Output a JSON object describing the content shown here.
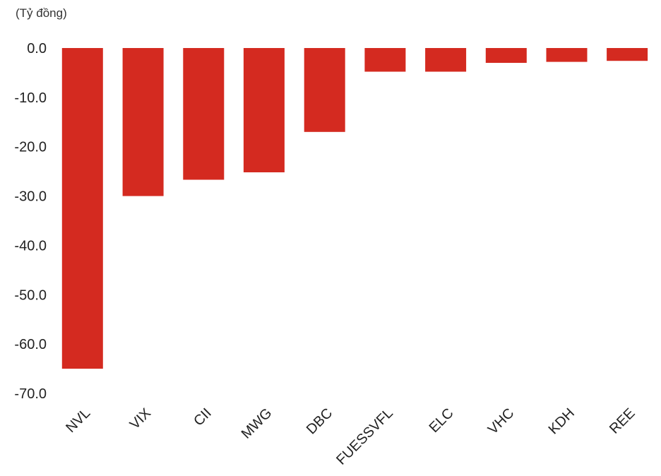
{
  "chart_data": {
    "type": "bar",
    "unit_label": "(Tỷ đồng)",
    "categories": [
      "NVL",
      "VIX",
      "CII",
      "MWG",
      "DBC",
      "FUESSVFL",
      "ELC",
      "VHC",
      "KDH",
      "REE"
    ],
    "values": [
      -65.0,
      -30.0,
      -26.7,
      -25.2,
      -17.0,
      -4.8,
      -4.8,
      -3.0,
      -2.8,
      -2.6
    ],
    "ylim": [
      -70,
      0
    ],
    "yticks": [
      "0.0",
      "-10.0",
      "-20.0",
      "-30.0",
      "-40.0",
      "-50.0",
      "-60.0",
      "-70.0"
    ],
    "bar_color": "#d42a20",
    "grid": false,
    "legend": "none"
  }
}
